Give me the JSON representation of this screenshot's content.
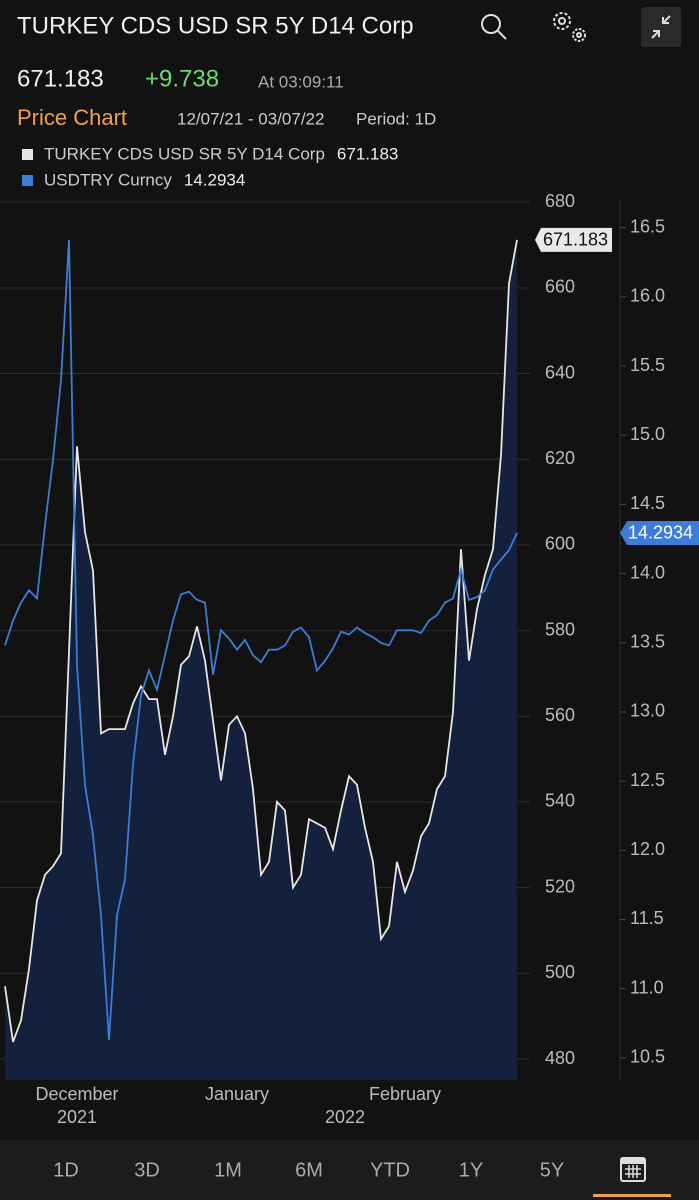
{
  "header": {
    "title": "TURKEY CDS USD SR 5Y D14 Corp",
    "change": "+9.738",
    "time": "At 03:09:11"
  },
  "subheader": {
    "label": "Price Chart",
    "range": "12/07/21 - 03/07/22",
    "period": "Period: 1D"
  },
  "chart_data": {
    "type": "line",
    "x": [
      0,
      1,
      2,
      3,
      4,
      5,
      6,
      7,
      8,
      9,
      10,
      11,
      12,
      13,
      14,
      15,
      16,
      17,
      18,
      19,
      20,
      21,
      22,
      23,
      24,
      25,
      26,
      27,
      28,
      29,
      30,
      31,
      32,
      33,
      34,
      35,
      36,
      37,
      38,
      39,
      40,
      41,
      42,
      43,
      44,
      45,
      46,
      47,
      48,
      49,
      50,
      51,
      52,
      53,
      54,
      55,
      56,
      57,
      58,
      59,
      60,
      61,
      62,
      63,
      64
    ],
    "xlim": [
      0,
      64
    ],
    "xticks": [
      {
        "value": 9,
        "label": "December"
      },
      {
        "value": 29,
        "label": "January"
      },
      {
        "value": 50,
        "label": "February"
      }
    ],
    "year_ticks": [
      {
        "value": 9,
        "label": "2021"
      },
      {
        "value": 42.5,
        "label": "2022"
      }
    ],
    "series": [
      {
        "name": "TURKEY CDS USD SR 5Y D14 Corp",
        "color": "#e6e6e6",
        "fill": "#14213d",
        "values": [
          497,
          484,
          489,
          501,
          517,
          523,
          525,
          528,
          575,
          623,
          603,
          594,
          556,
          557,
          557,
          557,
          563,
          567,
          564,
          564,
          551,
          560,
          572,
          574,
          581,
          573,
          559,
          545,
          558,
          560,
          556,
          543,
          523,
          526,
          540,
          538,
          520,
          523,
          536,
          535,
          534,
          529,
          538,
          546,
          544,
          534,
          526,
          508,
          511,
          526,
          519,
          524,
          532,
          535,
          543,
          546,
          561,
          599,
          573,
          585,
          593,
          599,
          621,
          661,
          671.183
        ]
      },
      {
        "name": "USDTRY Curncy",
        "color": "#3b7dd8",
        "axis": "y2",
        "values": [
          13.48,
          13.66,
          13.79,
          13.88,
          13.82,
          14.35,
          14.82,
          15.4,
          16.41,
          13.34,
          12.47,
          12.11,
          11.53,
          10.63,
          11.53,
          11.79,
          12.62,
          13.12,
          13.3,
          13.16,
          13.41,
          13.66,
          13.85,
          13.87,
          13.81,
          13.79,
          13.27,
          13.59,
          13.53,
          13.45,
          13.52,
          13.41,
          13.36,
          13.45,
          13.45,
          13.48,
          13.58,
          13.61,
          13.54,
          13.3,
          13.37,
          13.46,
          13.58,
          13.56,
          13.61,
          13.57,
          13.54,
          13.5,
          13.48,
          13.59,
          13.59,
          13.59,
          13.57,
          13.66,
          13.7,
          13.79,
          13.82,
          14.03,
          13.81,
          13.83,
          13.88,
          14.03,
          14.1,
          14.17,
          14.2934
        ]
      }
    ],
    "ylim": [
      475.1,
      680.5
    ],
    "yticks": [
      480,
      500,
      520,
      540,
      560,
      580,
      600,
      620,
      640,
      660,
      680
    ],
    "y2lim": [
      10.34,
      16.7
    ],
    "y2ticks": [
      10.5,
      {
        "value": 11,
        "label": "11.0"
      },
      11.5,
      {
        "value": 12,
        "label": "12.0"
      },
      12.5,
      {
        "value": 13,
        "label": "13.0"
      },
      13.5,
      {
        "value": 14,
        "label": "14.0"
      },
      14.5,
      {
        "value": 15,
        "label": "15.0"
      },
      15.5,
      {
        "value": 16,
        "label": "16.0"
      },
      16.5
    ],
    "grid": true
  },
  "tabs": [
    "1D",
    "3D",
    "1M",
    "6M",
    "YTD",
    "1Y",
    "5Y"
  ]
}
